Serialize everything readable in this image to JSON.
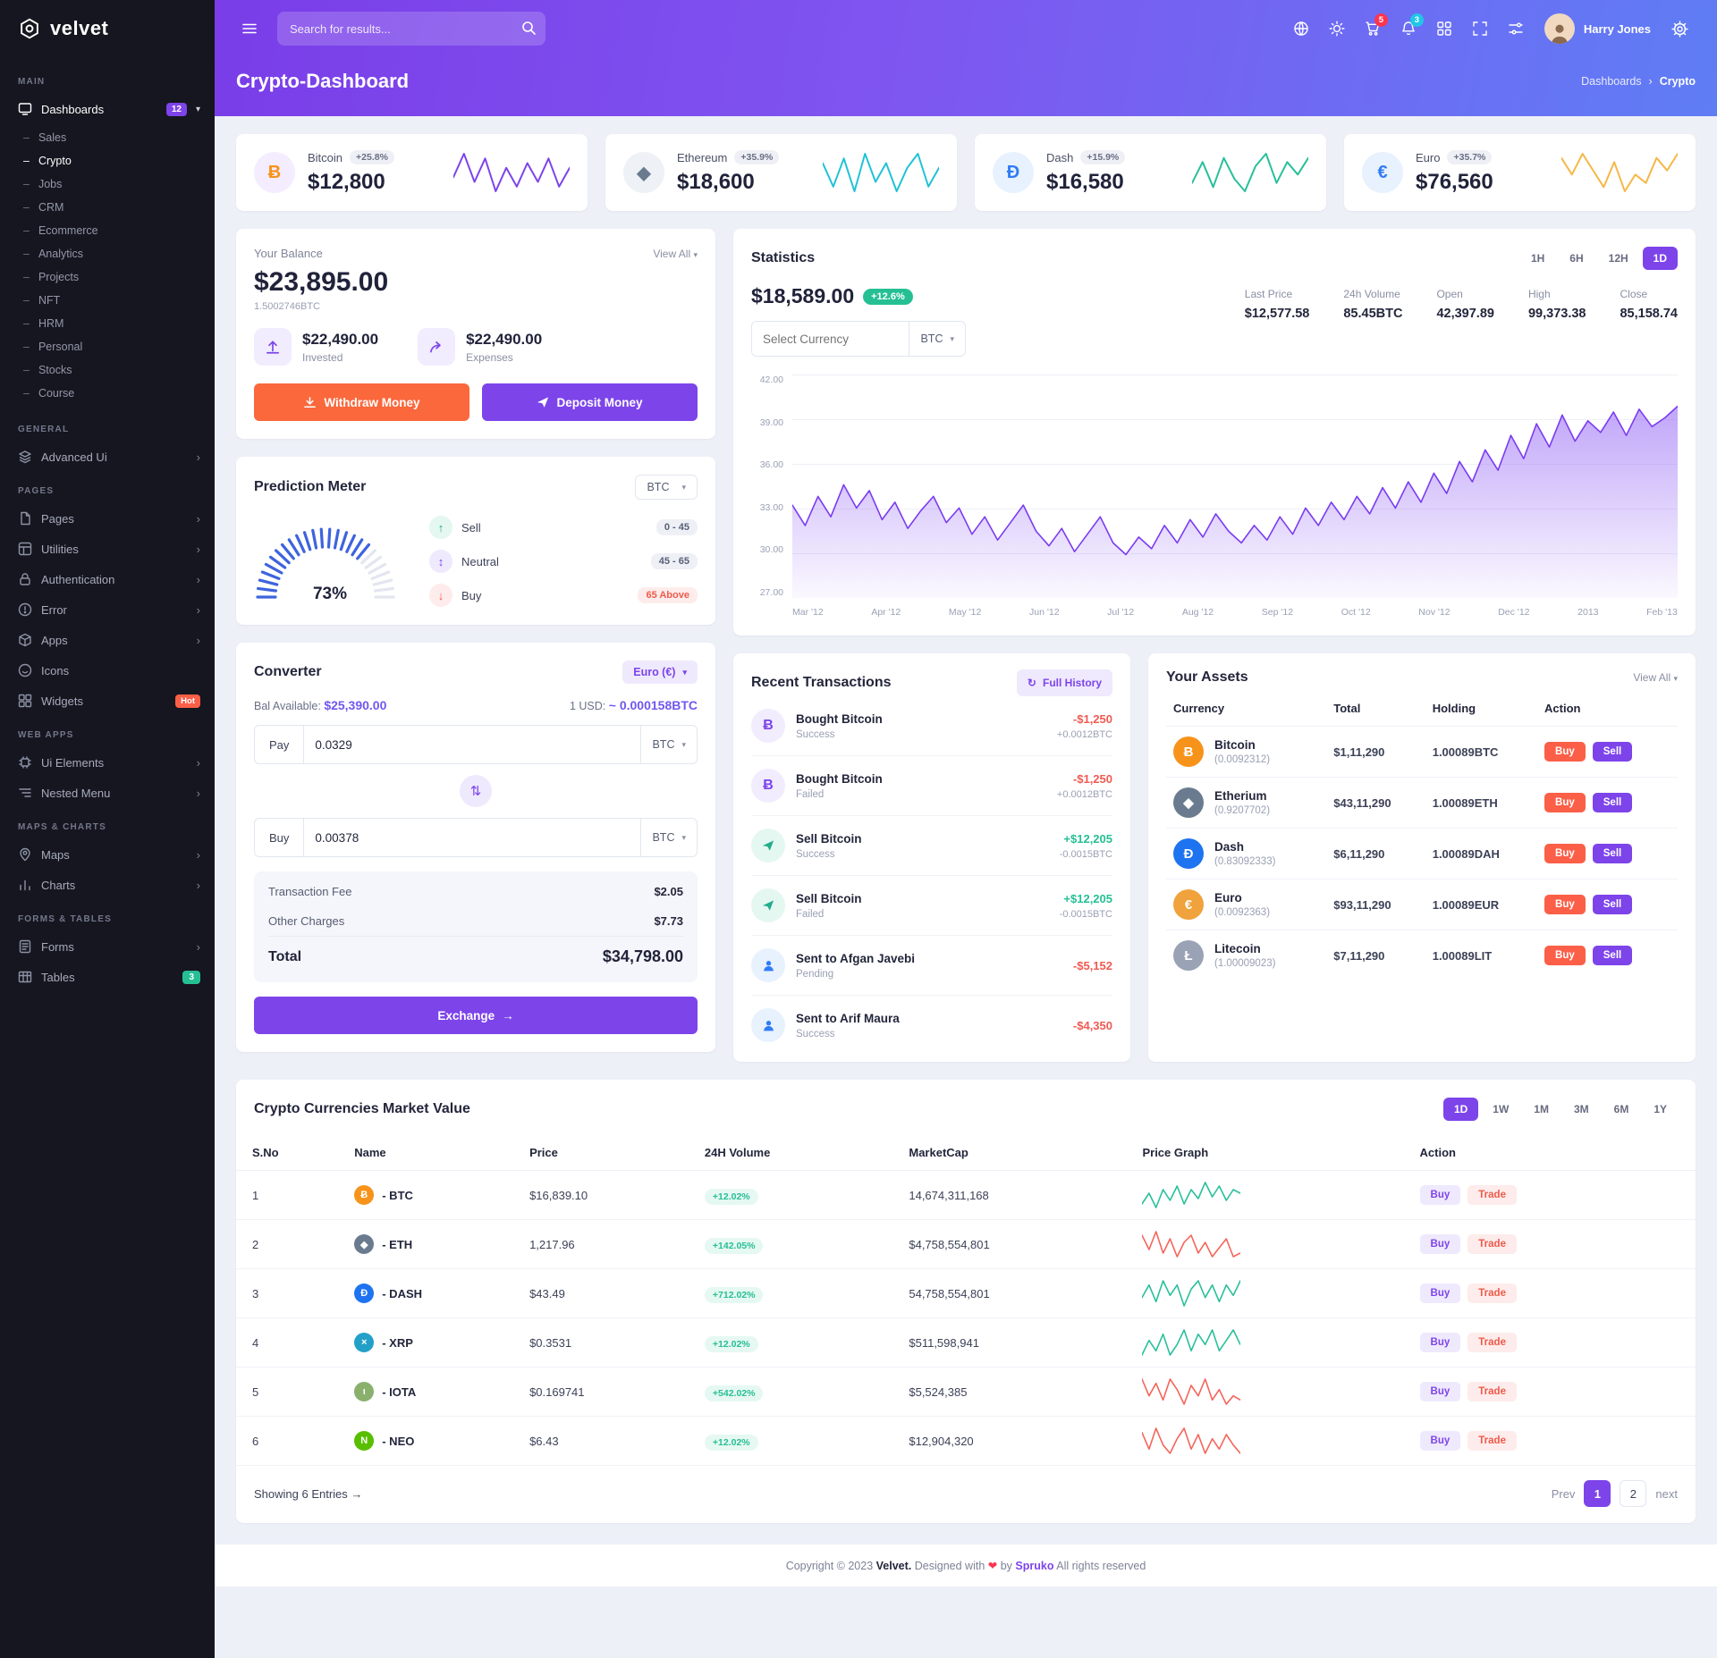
{
  "palette": {
    "primary": "#7d44ea",
    "orange": "#fa683c",
    "success": "#26bf94",
    "danger": "#f05a52",
    "header_gradient_start": "#7a3de8",
    "header_gradient_end": "#5f7df5"
  },
  "brand": {
    "name": "velvet"
  },
  "header": {
    "search_placeholder": "Search for results...",
    "cart_badge": "5",
    "bell_badge": "3",
    "user_name": "Harry Jones"
  },
  "page": {
    "title": "Crypto-Dashboard",
    "breadcrumb_parent": "Dashboards",
    "breadcrumb_current": "Crypto"
  },
  "sidebar": {
    "sections": [
      {
        "label": "MAIN",
        "items": [
          {
            "label": "Dashboards",
            "badge": "12",
            "children": [
              "Sales",
              "Crypto",
              "Jobs",
              "CRM",
              "Ecommerce",
              "Analytics",
              "Projects",
              "NFT",
              "HRM",
              "Personal",
              "Stocks",
              "Course"
            ],
            "active_child": "Crypto"
          }
        ]
      },
      {
        "label": "GENERAL",
        "items": [
          {
            "label": "Advanced Ui"
          }
        ]
      },
      {
        "label": "PAGES",
        "items": [
          {
            "label": "Pages"
          },
          {
            "label": "Utilities"
          },
          {
            "label": "Authentication"
          },
          {
            "label": "Error"
          },
          {
            "label": "Apps"
          },
          {
            "label": "Icons"
          },
          {
            "label": "Widgets",
            "badge": "Hot"
          }
        ]
      },
      {
        "label": "WEB APPS",
        "items": [
          {
            "label": "Ui Elements"
          },
          {
            "label": "Nested Menu"
          }
        ]
      },
      {
        "label": "MAPS & CHARTS",
        "items": [
          {
            "label": "Maps"
          },
          {
            "label": "Charts"
          }
        ]
      },
      {
        "label": "FORMS & TABLES",
        "items": [
          {
            "label": "Forms"
          },
          {
            "label": "Tables",
            "badge": "3"
          }
        ]
      }
    ]
  },
  "stat_cards": [
    {
      "name": "Bitcoin",
      "change": "+25.8%",
      "value": "$12,800",
      "glyph": "Ƀ",
      "color": "#7d44ea",
      "spark": [
        20,
        30,
        18,
        28,
        14,
        24,
        16,
        26,
        18,
        28,
        16,
        24
      ]
    },
    {
      "name": "Ethereum",
      "change": "+35.9%",
      "value": "$18,600",
      "glyph": "◆",
      "color": "#22c2d6",
      "spark": [
        24,
        14,
        26,
        12,
        28,
        16,
        24,
        12,
        22,
        28,
        14,
        22
      ]
    },
    {
      "name": "Dash",
      "change": "+15.9%",
      "value": "$16,580",
      "glyph": "Đ",
      "color": "#29bf9b",
      "spark": [
        14,
        24,
        12,
        26,
        16,
        10,
        22,
        28,
        14,
        24,
        18,
        26
      ]
    },
    {
      "name": "Euro",
      "change": "+35.7%",
      "value": "$76,560",
      "glyph": "€",
      "color": "#f5b849",
      "spark": [
        26,
        18,
        28,
        20,
        12,
        24,
        10,
        18,
        14,
        26,
        20,
        28
      ]
    }
  ],
  "balance": {
    "title": "Your Balance",
    "view_all": "View All",
    "amount": "$23,895.00",
    "btc": "1.5002746BTC",
    "invested": "$22,490.00",
    "invested_label": "Invested",
    "expenses": "$22,490.00",
    "expenses_label": "Expenses",
    "withdraw_label": "Withdraw Money",
    "deposit_label": "Deposit Money"
  },
  "prediction": {
    "title": "Prediction Meter",
    "currency": "BTC",
    "gauge_value": 73,
    "gauge_label": "73%",
    "legend": [
      {
        "label": "Sell",
        "range": "0 - 45"
      },
      {
        "label": "Neutral",
        "range": "45 - 65"
      },
      {
        "label": "Buy",
        "range": "65 Above"
      }
    ]
  },
  "converter": {
    "title": "Converter",
    "currency": "Euro (€)",
    "bal_label": "Bal Available:",
    "bal": "$25,390.00",
    "rate_label": "1 USD:",
    "rate": "~ 0.000158BTC",
    "pay_label": "Pay",
    "pay_value": "0.0329",
    "pay_unit": "BTC",
    "buy_label": "Buy",
    "buy_value": "0.00378",
    "buy_unit": "BTC",
    "fee_label": "Transaction Fee",
    "fee": "$2.05",
    "other_label": "Other Charges",
    "other": "$7.73",
    "total_label": "Total",
    "total": "$34,798.00",
    "exchange_label": "Exchange"
  },
  "statistics": {
    "title": "Statistics",
    "tabs": [
      "1H",
      "6H",
      "12H",
      "1D"
    ],
    "active_tab": "1D",
    "price": "$18,589.00",
    "change": "+12.6%",
    "select_placeholder": "Select Currency",
    "currency": "BTC",
    "stats": [
      {
        "label": "Last Price",
        "value": "$12,577.58"
      },
      {
        "label": "24h Volume",
        "value": "85.45BTC"
      },
      {
        "label": "Open",
        "value": "42,397.89"
      },
      {
        "label": "High",
        "value": "99,373.38"
      },
      {
        "label": "Close",
        "value": "85,158.74"
      }
    ],
    "chart": {
      "type": "area",
      "ymin": 27,
      "ymax": 42,
      "y_ticks": [
        "42.00",
        "39.00",
        "36.00",
        "33.00",
        "30.00",
        "27.00"
      ],
      "x_ticks": [
        "Mar '12",
        "Apr '12",
        "May '12",
        "Jun '12",
        "Jul '12",
        "Aug '12",
        "Sep '12",
        "Oct '12",
        "Nov '12",
        "Dec '12",
        "2013",
        "Feb '13"
      ],
      "values": [
        33.2,
        31.8,
        33.8,
        32.4,
        34.6,
        33.0,
        34.2,
        32.2,
        33.4,
        31.6,
        32.8,
        33.8,
        32.0,
        33.0,
        31.2,
        32.4,
        30.8,
        32.0,
        33.2,
        31.4,
        30.4,
        31.6,
        30.0,
        31.2,
        32.4,
        30.6,
        29.8,
        31.0,
        30.2,
        31.8,
        30.6,
        32.2,
        31.0,
        32.6,
        31.4,
        30.6,
        31.8,
        30.8,
        32.4,
        31.2,
        33.0,
        31.8,
        33.4,
        32.2,
        33.8,
        32.6,
        34.4,
        33.0,
        34.8,
        33.4,
        35.4,
        34.0,
        36.2,
        34.8,
        37.0,
        35.6,
        38.0,
        36.4,
        38.8,
        37.2,
        39.4,
        37.6,
        39.0,
        38.2,
        39.6,
        38.0,
        39.8,
        38.6,
        39.2,
        40.0
      ]
    }
  },
  "transactions": {
    "title": "Recent Transactions",
    "full_history": "Full History",
    "items": [
      {
        "icon": "bitcoin",
        "title": "Bought Bitcoin",
        "status": "Success",
        "amount": "-$1,250",
        "sub": "+0.0012BTC"
      },
      {
        "icon": "bitcoin",
        "title": "Bought Bitcoin",
        "status": "Failed",
        "amount": "-$1,250",
        "sub": "+0.0012BTC"
      },
      {
        "icon": "send",
        "title": "Sell Bitcoin",
        "status": "Success",
        "amount": "+$12,205",
        "sub": "-0.0015BTC"
      },
      {
        "icon": "send",
        "title": "Sell Bitcoin",
        "status": "Failed",
        "amount": "+$12,205",
        "sub": "-0.0015BTC"
      },
      {
        "icon": "user",
        "title": "Sent to Afgan Javebi",
        "status": "Pending",
        "amount": "-$5,152",
        "sub": ""
      },
      {
        "icon": "user",
        "title": "Sent to Arif Maura",
        "status": "Success",
        "amount": "-$4,350",
        "sub": ""
      }
    ]
  },
  "assets": {
    "title": "Your Assets",
    "view_all": "View All",
    "headers": [
      "Currency",
      "Total",
      "Holding",
      "Action"
    ],
    "buy_label": "Buy",
    "sell_label": "Sell",
    "rows": [
      {
        "glyph": "Ƀ",
        "name": "Bitcoin",
        "sub": "(0.0092312)",
        "total": "$1,11,290",
        "holding": "1.00089BTC"
      },
      {
        "glyph": "◆",
        "name": "Etherium",
        "sub": "(0.9207702)",
        "total": "$43,11,290",
        "holding": "1.00089ETH"
      },
      {
        "glyph": "Đ",
        "name": "Dash",
        "sub": "(0.83092333)",
        "total": "$6,11,290",
        "holding": "1.00089DAH"
      },
      {
        "glyph": "€",
        "name": "Euro",
        "sub": "(0.0092363)",
        "total": "$93,11,290",
        "holding": "1.00089EUR"
      },
      {
        "glyph": "Ł",
        "name": "Litecoin",
        "sub": "(1.00009023)",
        "total": "$7,11,290",
        "holding": "1.00089LIT"
      }
    ]
  },
  "market": {
    "title": "Crypto Currencies Market Value",
    "tabs": [
      "1D",
      "1W",
      "1M",
      "3M",
      "6M",
      "1Y"
    ],
    "active_tab": "1D",
    "headers": [
      "S.No",
      "Name",
      "Price",
      "24H Volume",
      "MarketCap",
      "Price Graph",
      "Action"
    ],
    "buy_label": "Buy",
    "trade_label": "Trade",
    "rows": [
      {
        "sno": "1",
        "glyph": "Ƀ",
        "label": "- BTC",
        "price": "$16,839.10",
        "volume": "+12.02%",
        "marketcap": "14,674,311,168",
        "trend_color": "#29bf9b",
        "spark": [
          12,
          18,
          10,
          20,
          14,
          22,
          12,
          20,
          15,
          24,
          16,
          22,
          14,
          20,
          18
        ]
      },
      {
        "sno": "2",
        "glyph": "◆",
        "label": "- ETH",
        "price": "1,217.96",
        "volume": "+142.05%",
        "marketcap": "$4,758,554,801",
        "trend_color": "#f5655b",
        "spark": [
          22,
          14,
          24,
          12,
          20,
          10,
          18,
          22,
          12,
          18,
          10,
          15,
          20,
          10,
          12
        ]
      },
      {
        "sno": "3",
        "glyph": "Đ",
        "label": "- DASH",
        "price": "$43.49",
        "volume": "+712.02%",
        "marketcap": "54,758,554,801",
        "trend_color": "#29bf9b",
        "spark": [
          14,
          20,
          12,
          22,
          15,
          20,
          10,
          18,
          22,
          14,
          20,
          12,
          20,
          15,
          22
        ]
      },
      {
        "sno": "4",
        "glyph": "×",
        "label": "- XRP",
        "price": "$0.3531",
        "volume": "+12.02%",
        "marketcap": "$511,598,941",
        "trend_color": "#29bf9b",
        "spark": [
          10,
          17,
          12,
          20,
          10,
          15,
          22,
          12,
          20,
          15,
          22,
          12,
          17,
          22,
          15
        ]
      },
      {
        "sno": "5",
        "glyph": "ι",
        "label": "- IOTA",
        "price": "$0.169741",
        "volume": "+542.02%",
        "marketcap": "$5,524,385",
        "trend_color": "#f5655b",
        "spark": [
          20,
          12,
          18,
          10,
          20,
          15,
          8,
          17,
          12,
          20,
          10,
          15,
          8,
          12,
          10
        ]
      },
      {
        "sno": "6",
        "glyph": "N",
        "label": "- NEO",
        "price": "$6.43",
        "volume": "+12.02%",
        "marketcap": "$12,904,320",
        "trend_color": "#f5655b",
        "spark": [
          18,
          10,
          20,
          12,
          8,
          15,
          20,
          10,
          17,
          8,
          15,
          10,
          17,
          12,
          8
        ]
      }
    ],
    "showing": "Showing 6 Entries",
    "prev": "Prev",
    "pages": [
      "1",
      "2"
    ],
    "next": "next"
  },
  "footer": {
    "prefix": "Copyright © 2023",
    "brand": "Velvet.",
    "designed": "Designed with",
    "heart": "❤",
    "by": "by",
    "link": "Spruko",
    "suffix": "All rights reserved"
  }
}
